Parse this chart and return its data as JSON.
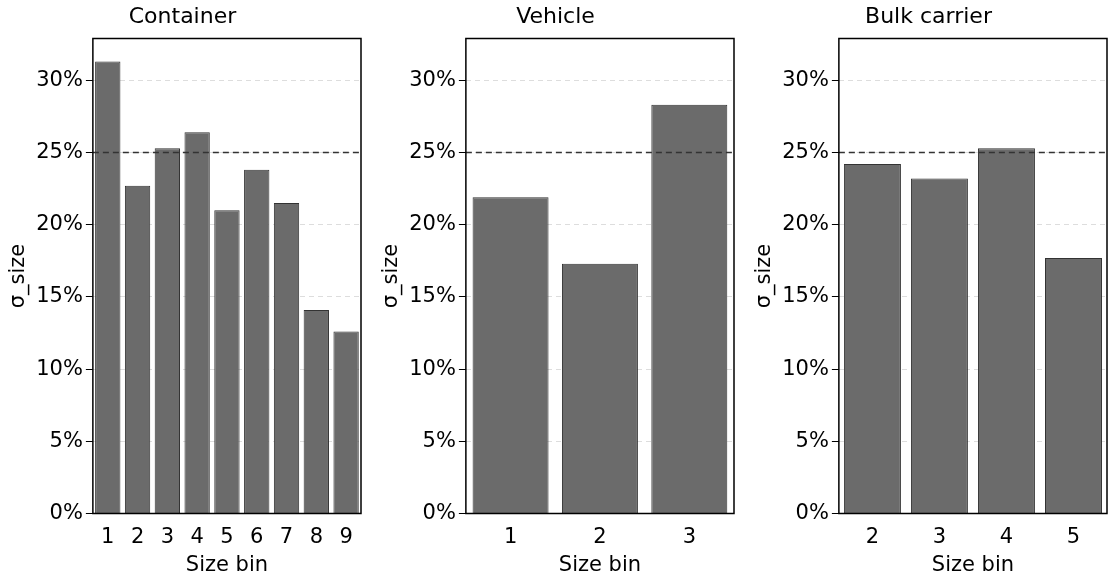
{
  "chart_data": [
    {
      "type": "bar",
      "title": "Container",
      "xlabel": "Size bin",
      "ylabel": "σ_size",
      "categories": [
        "1",
        "2",
        "3",
        "4",
        "5",
        "6",
        "7",
        "8",
        "9"
      ],
      "values": [
        31.3,
        22.7,
        25.3,
        26.4,
        21.0,
        23.8,
        21.5,
        14.1,
        12.6
      ],
      "color": "#6b6b6b",
      "ylim": [
        0,
        32.9
      ],
      "yticks": [
        {
          "value": 0,
          "label": "0%"
        },
        {
          "value": 5,
          "label": "5%"
        },
        {
          "value": 10,
          "label": "10%"
        },
        {
          "value": 15,
          "label": "15%"
        },
        {
          "value": 20,
          "label": "20%"
        },
        {
          "value": 25,
          "label": "25%"
        },
        {
          "value": 30,
          "label": "30%"
        }
      ],
      "grid": "y",
      "ref_lines": [
        {
          "axis": "y",
          "value": 25,
          "color": "#333333",
          "line_style": "dashed"
        }
      ]
    },
    {
      "type": "bar",
      "title": "Vehicle",
      "xlabel": "Size bin",
      "ylabel": "σ_size",
      "categories": [
        "1",
        "2",
        "3"
      ],
      "values": [
        21.9,
        17.3,
        28.3
      ],
      "color": "#6b6b6b",
      "ylim": [
        0,
        32.9
      ],
      "yticks": [
        {
          "value": 0,
          "label": "0%"
        },
        {
          "value": 5,
          "label": "5%"
        },
        {
          "value": 10,
          "label": "10%"
        },
        {
          "value": 15,
          "label": "15%"
        },
        {
          "value": 20,
          "label": "20%"
        },
        {
          "value": 25,
          "label": "25%"
        },
        {
          "value": 30,
          "label": "30%"
        }
      ],
      "grid": "y",
      "ref_lines": [
        {
          "axis": "y",
          "value": 25,
          "color": "#333333",
          "line_style": "dashed"
        }
      ]
    },
    {
      "type": "bar",
      "title": "Bulk carrier",
      "xlabel": "Size bin",
      "ylabel": "σ_size",
      "categories": [
        "2",
        "3",
        "4",
        "5"
      ],
      "values": [
        24.2,
        23.2,
        25.3,
        17.7
      ],
      "color": "#6b6b6b",
      "ylim": [
        0,
        32.9
      ],
      "yticks": [
        {
          "value": 0,
          "label": "0%"
        },
        {
          "value": 5,
          "label": "5%"
        },
        {
          "value": 10,
          "label": "10%"
        },
        {
          "value": 15,
          "label": "15%"
        },
        {
          "value": 20,
          "label": "20%"
        },
        {
          "value": 25,
          "label": "25%"
        },
        {
          "value": 30,
          "label": "30%"
        }
      ],
      "grid": "y",
      "ref_lines": [
        {
          "axis": "y",
          "value": 25,
          "color": "#333333",
          "line_style": "dashed"
        }
      ]
    }
  ]
}
